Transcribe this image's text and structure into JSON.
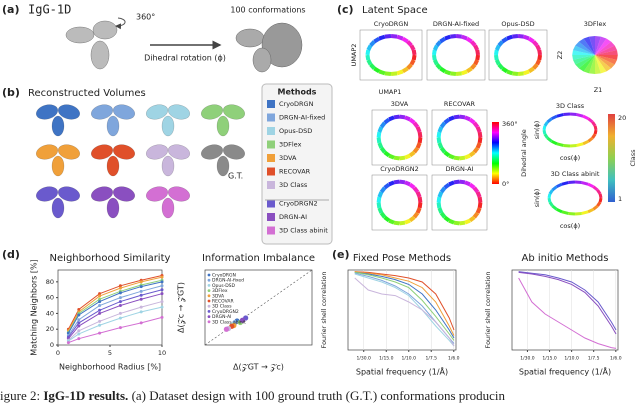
{
  "panel_a": {
    "label": "(a)",
    "title": "IgG-1D",
    "rotation": "360°",
    "conformations": "100 conformations",
    "arrow_text": "Dihedral rotation (ϕ)"
  },
  "panel_b": {
    "label": "(b)",
    "title": "Reconstructed Volumes",
    "ground_truth": "G.T.",
    "legend_title": "Methods",
    "methods": [
      {
        "name": "CryoDRGN",
        "color": "#3f74c4"
      },
      {
        "name": "DRGN-AI-fixed",
        "color": "#7fa6dc"
      },
      {
        "name": "Opus-DSD",
        "color": "#9fd4e4"
      },
      {
        "name": "3DFlex",
        "color": "#8fd07a"
      },
      {
        "name": "3DVA",
        "color": "#f0a03a"
      },
      {
        "name": "RECOVAR",
        "color": "#e0502a"
      },
      {
        "name": "3D Class",
        "color": "#c9b6dc"
      },
      {
        "name": "CryoDRGN2",
        "color": "#6a5acd"
      },
      {
        "name": "DRGN-AI",
        "color": "#8a4fc0"
      },
      {
        "name": "3D Class abinit",
        "color": "#d36fd3"
      }
    ]
  },
  "panel_c": {
    "label": "(c)",
    "title": "Latent Space",
    "plots": [
      "CryoDRGN",
      "DRGN-AI-fixed",
      "Opus-DSD",
      "3DFlex",
      "3DVA",
      "RECOVAR",
      "CryoDRGN2",
      "DRGN-AI",
      "3D Class",
      "3D Class abinit"
    ],
    "umap_x": "UMAP1",
    "umap_y": "UMAP2",
    "z_x": "Z1",
    "z_y": "Z2",
    "angle_max": "360°",
    "angle_min": "0°",
    "angle_label": "Dihedral angle",
    "sin_label": "sin(ϕ)",
    "cos_label": "cos(ϕ)",
    "class_label": "Class",
    "class_max": "20",
    "class_min": "1"
  },
  "panel_d": {
    "label": "(d)"
  },
  "panel_e": {
    "label": "(e)"
  },
  "caption": {
    "lead": "igure 2: ",
    "bold": "IgG-1D results.",
    "rest": " (a) Dataset design with 100 ground truth (G.T.) conformations producin"
  },
  "chart_data": [
    {
      "type": "line",
      "title": "Neighborhood Similarity",
      "xlabel": "Neighborhood Radius [%]",
      "ylabel": "Matching Neighbors [%]",
      "xlim": [
        0,
        10
      ],
      "ylim": [
        0,
        95
      ],
      "xticks": [
        0,
        5,
        10
      ],
      "yticks": [
        0,
        20,
        40,
        60,
        80
      ],
      "markers": true,
      "x": [
        1,
        2,
        4,
        6,
        8,
        10
      ],
      "series": [
        {
          "name": "RECOVAR",
          "color": "#e0502a",
          "values": [
            20,
            45,
            65,
            75,
            82,
            88
          ]
        },
        {
          "name": "3DVA",
          "color": "#f0a03a",
          "values": [
            18,
            42,
            62,
            72,
            80,
            86
          ]
        },
        {
          "name": "3DFlex",
          "color": "#8fd07a",
          "values": [
            16,
            40,
            58,
            68,
            76,
            82
          ]
        },
        {
          "name": "CryoDRGN",
          "color": "#3f74c4",
          "values": [
            15,
            38,
            55,
            66,
            74,
            80
          ]
        },
        {
          "name": "DRGN-AI-fixed",
          "color": "#7fa6dc",
          "values": [
            12,
            32,
            50,
            60,
            68,
            75
          ]
        },
        {
          "name": "CryoDRGN2",
          "color": "#6a5acd",
          "values": [
            10,
            28,
            44,
            55,
            63,
            70
          ]
        },
        {
          "name": "DRGN-AI",
          "color": "#8a4fc0",
          "values": [
            8,
            24,
            40,
            50,
            58,
            65
          ]
        },
        {
          "name": "3D Class",
          "color": "#c9b6dc",
          "values": [
            6,
            18,
            30,
            40,
            48,
            55
          ]
        },
        {
          "name": "Opus-DSD",
          "color": "#9fd4e4",
          "values": [
            5,
            14,
            25,
            34,
            42,
            48
          ]
        },
        {
          "name": "3D Class abinit",
          "color": "#d36fd3",
          "values": [
            3,
            8,
            15,
            22,
            28,
            35
          ]
        }
      ]
    },
    {
      "type": "scatter",
      "title": "Information Imbalance",
      "xlabel": "Δ(𝒵GT → 𝒵c)",
      "ylabel": "Δ(𝒵c → 𝒵GT)",
      "xlim": [
        0,
        1
      ],
      "ylim": [
        0,
        1
      ],
      "legend": "upper left",
      "series": [
        {
          "name": "CryoDRGN",
          "color": "#3f74c4",
          "x": [
            0.3
          ],
          "values": [
            0.32
          ]
        },
        {
          "name": "DRGN-AI-fixed",
          "color": "#7fa6dc",
          "x": [
            0.28
          ],
          "values": [
            0.3
          ]
        },
        {
          "name": "Opus-DSD",
          "color": "#9fd4e4",
          "x": [
            0.26
          ],
          "values": [
            0.27
          ]
        },
        {
          "name": "3DFlex",
          "color": "#8fd07a",
          "x": [
            0.33
          ],
          "values": [
            0.3
          ]
        },
        {
          "name": "3DVA",
          "color": "#f0a03a",
          "x": [
            0.27
          ],
          "values": [
            0.26
          ]
        },
        {
          "name": "RECOVAR",
          "color": "#e0502a",
          "x": [
            0.25
          ],
          "values": [
            0.25
          ]
        },
        {
          "name": "3D Class",
          "color": "#c9b6dc",
          "x": [
            0.22
          ],
          "values": [
            0.22
          ]
        },
        {
          "name": "CryoDRGN2",
          "color": "#6a5acd",
          "x": [
            0.38
          ],
          "values": [
            0.36
          ]
        },
        {
          "name": "DRGN-AI",
          "color": "#8a4fc0",
          "x": [
            0.35
          ],
          "values": [
            0.33
          ]
        },
        {
          "name": "3D Class abinit",
          "color": "#d36fd3",
          "x": [
            0.2
          ],
          "values": [
            0.21
          ]
        }
      ]
    },
    {
      "type": "line",
      "title": "Fixed Pose Methods",
      "xlabel": "Spatial frequency (1/Å)",
      "ylabel": "Fourier shell correlation",
      "xlim": [
        0.01,
        0.17
      ],
      "ylim": [
        0,
        1
      ],
      "grid": true,
      "xticks": [
        {
          "value": 0.0333,
          "label": "1/30.0"
        },
        {
          "value": 0.0667,
          "label": "1/15.0"
        },
        {
          "value": 0.1,
          "label": "1/10.0"
        },
        {
          "value": 0.1333,
          "label": "1/7.5"
        },
        {
          "value": 0.1667,
          "label": "1/6.0"
        }
      ],
      "x": [
        0.02,
        0.04,
        0.06,
        0.08,
        0.1,
        0.12,
        0.14,
        0.16,
        0.167
      ],
      "series": [
        {
          "name": "RECOVAR",
          "color": "#e0502a",
          "values": [
            0.98,
            0.97,
            0.95,
            0.93,
            0.9,
            0.85,
            0.7,
            0.4,
            0.25
          ]
        },
        {
          "name": "3DVA",
          "color": "#f0a03a",
          "values": [
            0.98,
            0.96,
            0.94,
            0.9,
            0.86,
            0.78,
            0.6,
            0.3,
            0.18
          ]
        },
        {
          "name": "CryoDRGN",
          "color": "#3f74c4",
          "values": [
            0.97,
            0.95,
            0.92,
            0.88,
            0.82,
            0.7,
            0.5,
            0.25,
            0.15
          ]
        },
        {
          "name": "3DFlex",
          "color": "#8fd07a",
          "values": [
            0.97,
            0.94,
            0.9,
            0.85,
            0.78,
            0.62,
            0.42,
            0.2,
            0.12
          ]
        },
        {
          "name": "DRGN-AI-fixed",
          "color": "#7fa6dc",
          "values": [
            0.96,
            0.92,
            0.87,
            0.8,
            0.7,
            0.55,
            0.35,
            0.15,
            0.08
          ]
        },
        {
          "name": "Opus-DSD",
          "color": "#9fd4e4",
          "values": [
            0.95,
            0.9,
            0.85,
            0.78,
            0.68,
            0.5,
            0.3,
            0.12,
            0.05
          ]
        },
        {
          "name": "3D Class",
          "color": "#c9b6dc",
          "values": [
            0.9,
            0.75,
            0.7,
            0.68,
            0.6,
            0.5,
            0.35,
            0.15,
            0.05
          ]
        }
      ]
    },
    {
      "type": "line",
      "title": "Ab initio Methods",
      "xlabel": "Spatial frequency (1/Å)",
      "ylabel": "Fourier shell correlation",
      "xlim": [
        0.01,
        0.17
      ],
      "ylim": [
        0,
        1
      ],
      "grid": true,
      "xticks": [
        {
          "value": 0.0333,
          "label": "1/30.0"
        },
        {
          "value": 0.0667,
          "label": "1/15.0"
        },
        {
          "value": 0.1,
          "label": "1/10.0"
        },
        {
          "value": 0.1333,
          "label": "1/7.5"
        },
        {
          "value": 0.1667,
          "label": "1/6.0"
        }
      ],
      "x": [
        0.02,
        0.04,
        0.06,
        0.08,
        0.1,
        0.12,
        0.14,
        0.16,
        0.167
      ],
      "series": [
        {
          "name": "CryoDRGN2",
          "color": "#6a5acd",
          "values": [
            0.98,
            0.96,
            0.94,
            0.9,
            0.85,
            0.75,
            0.6,
            0.35,
            0.25
          ]
        },
        {
          "name": "DRGN-AI",
          "color": "#8a4fc0",
          "values": [
            0.97,
            0.95,
            0.92,
            0.88,
            0.82,
            0.72,
            0.55,
            0.3,
            0.2
          ]
        },
        {
          "name": "3D Class abinit",
          "color": "#d36fd3",
          "values": [
            0.9,
            0.6,
            0.45,
            0.35,
            0.25,
            0.15,
            0.08,
            0.03,
            0.02
          ]
        }
      ]
    }
  ]
}
